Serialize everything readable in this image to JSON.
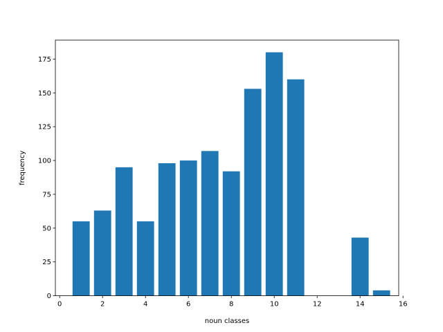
{
  "chart_data": {
    "type": "bar",
    "title": "",
    "xlabel": "noun classes",
    "ylabel": "frequency",
    "xlim": [
      -0.2,
      15.8
    ],
    "ylim": [
      0,
      189
    ],
    "xticks": [
      0,
      2,
      4,
      6,
      8,
      10,
      12,
      14,
      16
    ],
    "yticks": [
      0,
      25,
      50,
      75,
      100,
      125,
      150,
      175
    ],
    "bar_color": "#1f77b4",
    "bar_width": 0.8,
    "grid": false,
    "x": [
      1,
      2,
      3,
      4,
      5,
      6,
      7,
      8,
      9,
      10,
      11,
      14,
      15
    ],
    "values": [
      55,
      63,
      95,
      55,
      98,
      100,
      107,
      92,
      153,
      180,
      160,
      43,
      4
    ]
  }
}
